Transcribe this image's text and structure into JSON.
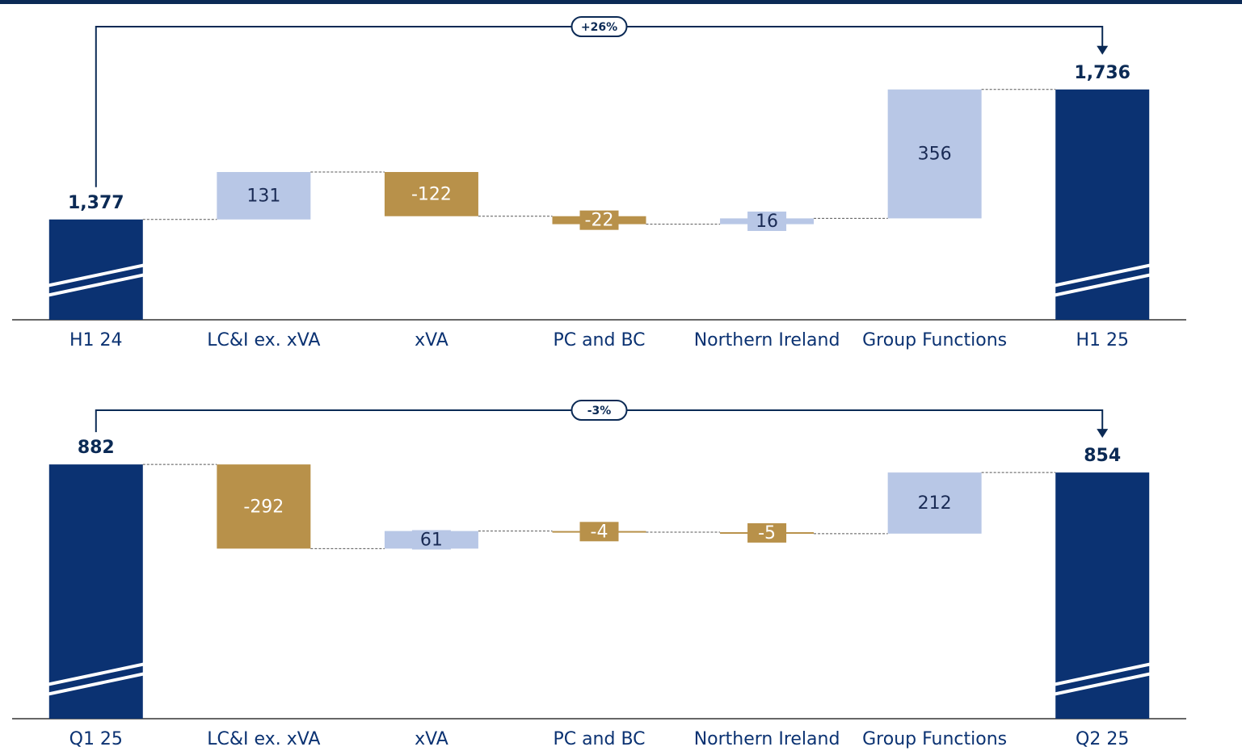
{
  "chart_data": [
    {
      "type": "waterfall",
      "annotation": "+26%",
      "categories": [
        "H1 24",
        "LC&I ex. xVA",
        "xVA",
        "PC and BC",
        "Northern Ireland",
        "Group Functions",
        "H1 25"
      ],
      "values": [
        1377,
        131,
        -122,
        -22,
        16,
        356,
        1736
      ],
      "value_labels": [
        "1,377",
        "131",
        "-122",
        "-22",
        "16",
        "356",
        "1,736"
      ],
      "colors": {
        "total": "#0b3272",
        "increase": "#b8c7e6",
        "decrease": "#b8914a"
      },
      "ylim": [
        1100,
        1760
      ]
    },
    {
      "type": "waterfall",
      "annotation": "-3%",
      "categories": [
        "Q1 25",
        "LC&I ex. xVA",
        "xVA",
        "PC and BC",
        "Northern Ireland",
        "Group Functions",
        "Q2 25"
      ],
      "values": [
        882,
        -292,
        61,
        -4,
        -5,
        212,
        854
      ],
      "value_labels": [
        "882",
        "-292",
        "61",
        "-4",
        "-5",
        "212",
        "854"
      ],
      "colors": {
        "total": "#0b3272",
        "increase": "#b8c7e6",
        "decrease": "#b8914a"
      },
      "ylim": [
        0,
        930
      ]
    }
  ]
}
